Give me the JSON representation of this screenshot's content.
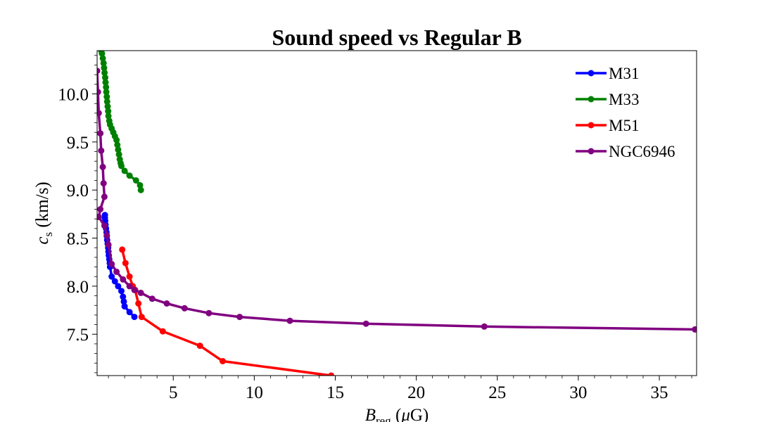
{
  "chart_data": {
    "type": "line",
    "title": "Sound speed vs Regular B",
    "xlabel": {
      "main": "B",
      "sub": "reg",
      "unit_open": " (",
      "unit_mu": "μ",
      "unit_close": "G)"
    },
    "ylabel": {
      "main": "c",
      "sub": "s",
      "unit": " (km/s)"
    },
    "xlim": [
      0.3,
      37.3
    ],
    "ylim": [
      7.07,
      10.45
    ],
    "x_ticks": [
      5,
      10,
      15,
      20,
      25,
      30,
      35
    ],
    "y_ticks": [
      7.5,
      8.0,
      8.5,
      9.0,
      9.5,
      10.0
    ],
    "x_tick_labels": [
      "5",
      "10",
      "15",
      "20",
      "25",
      "30",
      "35"
    ],
    "y_tick_labels": [
      "7.5",
      "8.0",
      "8.5",
      "9.0",
      "9.5",
      "10.0"
    ],
    "grid": false,
    "legend_position": "top-right",
    "series": [
      {
        "name": "M31",
        "color": "#0000ff",
        "x": [
          0.78,
          0.78,
          0.8,
          0.82,
          0.85,
          0.88,
          0.9,
          0.92,
          0.95,
          0.98,
          1.0,
          1.02,
          1.05,
          1.08,
          1.1,
          1.2,
          1.4,
          1.6,
          1.8,
          1.9,
          1.95,
          2.0,
          2.3,
          2.6
        ],
        "y": [
          8.74,
          8.71,
          8.68,
          8.64,
          8.6,
          8.56,
          8.52,
          8.48,
          8.44,
          8.4,
          8.36,
          8.32,
          8.28,
          8.24,
          8.2,
          8.1,
          8.05,
          8.0,
          7.95,
          7.89,
          7.84,
          7.79,
          7.73,
          7.68
        ]
      },
      {
        "name": "M33",
        "color": "#008000",
        "x": [
          0.55,
          0.6,
          0.65,
          0.7,
          0.73,
          0.76,
          0.8,
          0.82,
          0.85,
          0.87,
          0.9,
          0.92,
          0.95,
          0.98,
          1.0,
          1.05,
          1.1,
          1.2,
          1.3,
          1.4,
          1.5,
          1.55,
          1.6,
          1.65,
          1.7,
          1.75,
          1.8,
          2.0,
          2.3,
          2.7,
          2.95,
          3.0
        ],
        "y": [
          10.45,
          10.42,
          10.37,
          10.32,
          10.27,
          10.22,
          10.17,
          10.12,
          10.07,
          10.02,
          9.97,
          9.92,
          9.87,
          9.82,
          9.77,
          9.72,
          9.68,
          9.64,
          9.6,
          9.56,
          9.52,
          9.47,
          9.42,
          9.37,
          9.32,
          9.28,
          9.25,
          9.2,
          9.15,
          9.1,
          9.05,
          9.0
        ]
      },
      {
        "name": "M51",
        "color": "#ff0000",
        "x": [
          1.85,
          2.05,
          2.3,
          2.5,
          2.65,
          2.85,
          3.05,
          4.35,
          6.65,
          8.05,
          14.75
        ],
        "y": [
          8.38,
          8.24,
          8.1,
          8.0,
          7.96,
          7.82,
          7.68,
          7.53,
          7.38,
          7.22,
          7.07
        ]
      },
      {
        "name": "NGC6946",
        "color": "#800080",
        "x": [
          0.3,
          0.35,
          0.4,
          0.5,
          0.55,
          0.65,
          0.7,
          0.75,
          0.5,
          0.4,
          0.75,
          0.9,
          1.0,
          1.2,
          1.5,
          1.9,
          2.3,
          2.6,
          3.0,
          3.7,
          4.6,
          5.7,
          7.2,
          9.1,
          12.2,
          16.9,
          24.2,
          37.2
        ],
        "y": [
          10.24,
          10.02,
          9.8,
          9.59,
          9.41,
          9.24,
          9.07,
          8.93,
          8.8,
          8.72,
          8.63,
          8.53,
          8.43,
          8.23,
          8.15,
          8.07,
          8.0,
          7.96,
          7.93,
          7.87,
          7.82,
          7.77,
          7.72,
          7.68,
          7.64,
          7.61,
          7.58,
          7.55
        ]
      }
    ]
  }
}
